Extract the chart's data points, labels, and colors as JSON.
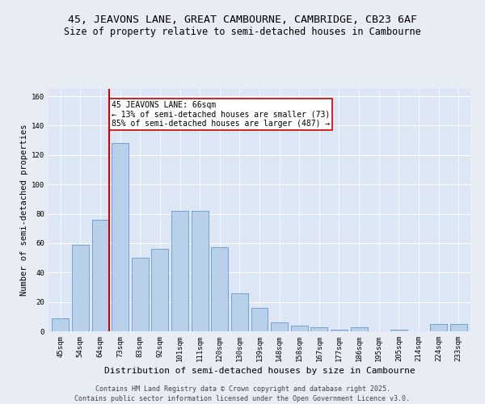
{
  "title": "45, JEAVONS LANE, GREAT CAMBOURNE, CAMBRIDGE, CB23 6AF",
  "subtitle": "Size of property relative to semi-detached houses in Cambourne",
  "xlabel": "Distribution of semi-detached houses by size in Cambourne",
  "ylabel": "Number of semi-detached properties",
  "categories": [
    "45sqm",
    "54sqm",
    "64sqm",
    "73sqm",
    "83sqm",
    "92sqm",
    "101sqm",
    "111sqm",
    "120sqm",
    "130sqm",
    "139sqm",
    "148sqm",
    "158sqm",
    "167sqm",
    "177sqm",
    "186sqm",
    "195sqm",
    "205sqm",
    "214sqm",
    "224sqm",
    "233sqm"
  ],
  "values": [
    9,
    59,
    76,
    128,
    50,
    56,
    82,
    82,
    57,
    26,
    16,
    6,
    4,
    3,
    1,
    3,
    0,
    1,
    0,
    5,
    5
  ],
  "bar_color": "#b8d0ea",
  "bar_edge_color": "#6699cc",
  "redline_color": "#cc0000",
  "annotation_title": "45 JEAVONS LANE: 66sqm",
  "annotation_line1": "← 13% of semi-detached houses are smaller (73)",
  "annotation_line2": "85% of semi-detached houses are larger (487) →",
  "annotation_box_facecolor": "#ffffff",
  "annotation_box_edgecolor": "#cc0000",
  "ylim": [
    0,
    165
  ],
  "yticks": [
    0,
    20,
    40,
    60,
    80,
    100,
    120,
    140,
    160
  ],
  "fig_background": "#e8edf5",
  "plot_background": "#dce6f5",
  "footer1": "Contains HM Land Registry data © Crown copyright and database right 2025.",
  "footer2": "Contains public sector information licensed under the Open Government Licence v3.0.",
  "title_fontsize": 9.5,
  "subtitle_fontsize": 8.5,
  "xlabel_fontsize": 8,
  "ylabel_fontsize": 7.5,
  "tick_fontsize": 6.5,
  "footer_fontsize": 6,
  "annotation_fontsize": 7
}
